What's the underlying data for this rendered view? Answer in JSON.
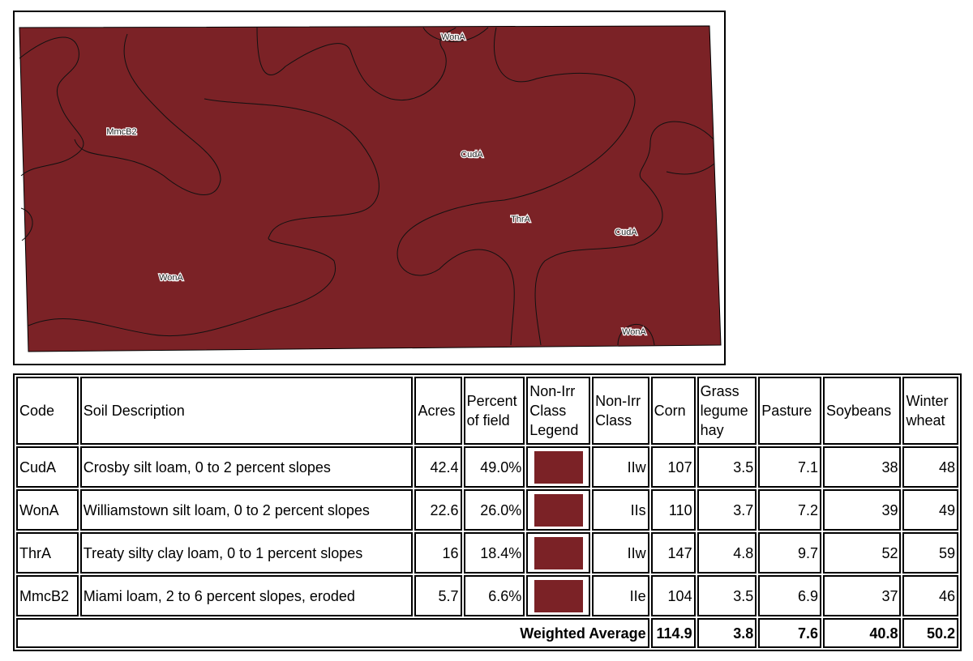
{
  "map": {
    "fill": "#7b2226",
    "labels": [
      {
        "text": "WonA"
      },
      {
        "text": "MmcB2"
      },
      {
        "text": "CudA"
      },
      {
        "text": "ThrA"
      },
      {
        "text": "CudA"
      },
      {
        "text": "WonA"
      },
      {
        "text": "WonA"
      }
    ]
  },
  "table": {
    "headers": [
      "Code",
      "Soil Description",
      "Acres",
      "Percent of field",
      "Non-Irr Class Legend",
      "Non-Irr Class",
      "Corn",
      "Grass legume hay",
      "Pasture",
      "Soybeans",
      "Winter wheat"
    ],
    "rows": [
      [
        "CudA",
        "Crosby silt loam, 0 to 2 percent slopes",
        42.4,
        "49.0%",
        "#7b2226",
        "IIw",
        107,
        3.5,
        7.1,
        38,
        48
      ],
      [
        "WonA",
        "Williamstown silt loam, 0 to 2 percent slopes",
        22.6,
        "26.0%",
        "#7b2226",
        "IIs",
        110,
        3.7,
        7.2,
        39,
        49
      ],
      [
        "ThrA",
        "Treaty silty clay loam, 0 to 1 percent slopes",
        16,
        "18.4%",
        "#7b2226",
        "IIw",
        147,
        4.8,
        9.7,
        52,
        59
      ],
      [
        "MmcB2",
        "Miami loam, 2 to 6 percent slopes, eroded",
        5.7,
        "6.6%",
        "#7b2226",
        "IIe",
        104,
        3.5,
        6.9,
        37,
        46
      ]
    ],
    "average": {
      "label": "Weighted Average",
      "values": [
        114.9,
        3.8,
        7.6,
        40.8,
        50.2
      ]
    }
  }
}
